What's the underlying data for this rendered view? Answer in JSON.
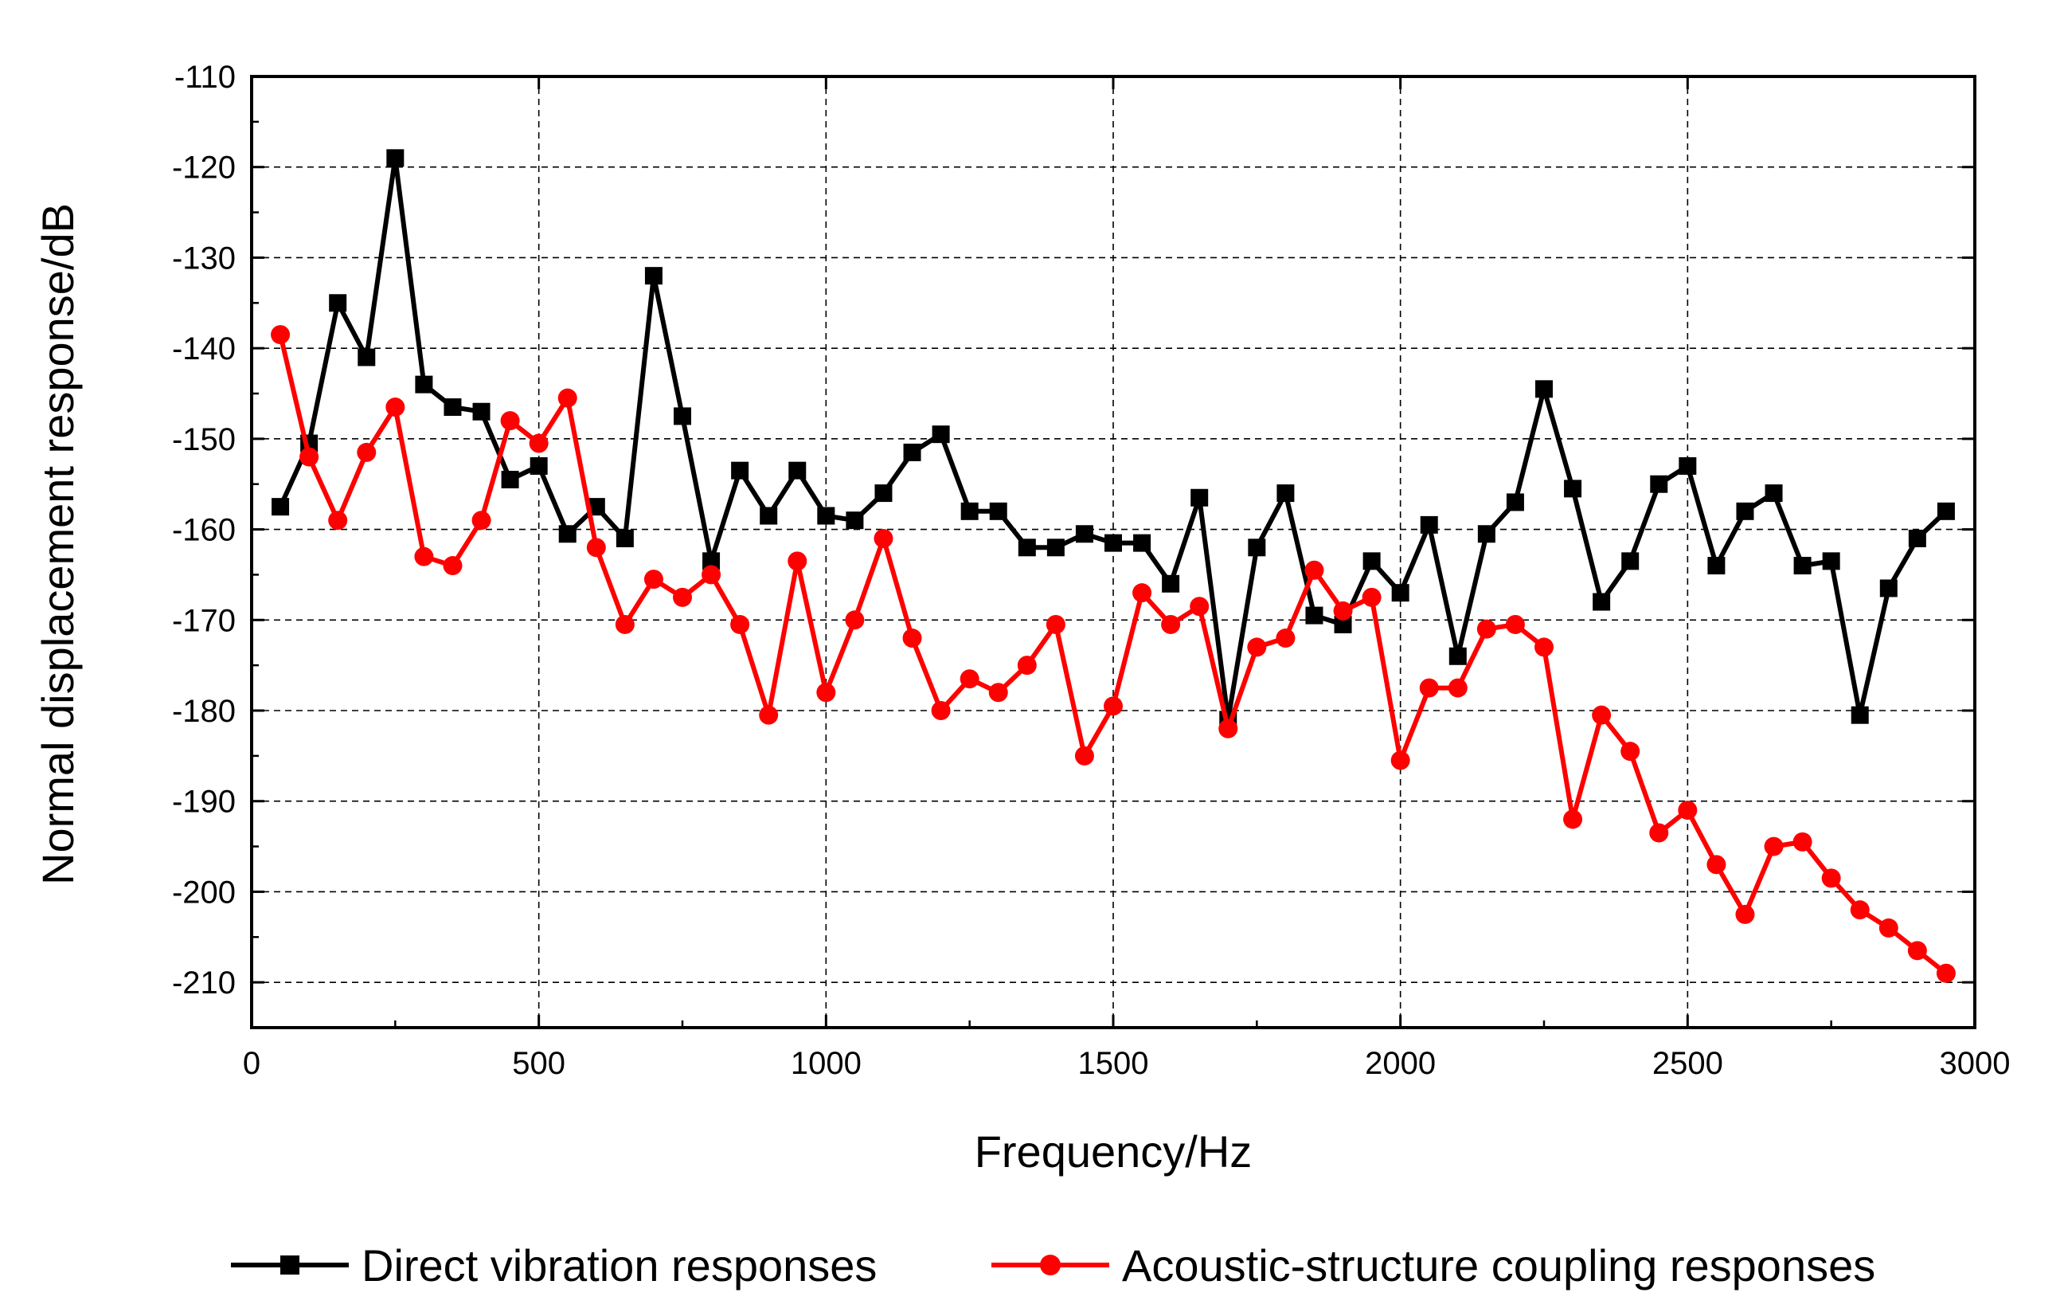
{
  "chart_data": {
    "type": "line",
    "title": "",
    "xlabel": "Frequency/Hz",
    "ylabel": "Normal displacement response/dB",
    "xlim": [
      0,
      3000
    ],
    "ylim": [
      -215,
      -110
    ],
    "xticks": [
      0,
      500,
      1000,
      1500,
      2000,
      2500,
      3000
    ],
    "yticks": [
      -110,
      -120,
      -130,
      -140,
      -150,
      -160,
      -170,
      -180,
      -190,
      -200,
      -210
    ],
    "grid": true,
    "legend_position": "bottom-center",
    "x": [
      50,
      100,
      150,
      200,
      250,
      300,
      350,
      400,
      450,
      500,
      550,
      600,
      650,
      700,
      750,
      800,
      850,
      900,
      950,
      1000,
      1050,
      1100,
      1150,
      1200,
      1250,
      1300,
      1350,
      1400,
      1450,
      1500,
      1550,
      1600,
      1650,
      1700,
      1750,
      1800,
      1850,
      1900,
      1950,
      2000,
      2050,
      2100,
      2150,
      2200,
      2250,
      2300,
      2350,
      2400,
      2450,
      2500,
      2550,
      2600,
      2650,
      2700,
      2750,
      2800,
      2850,
      2900,
      2950
    ],
    "series": [
      {
        "name": "Direct vibration responses",
        "color": "#000000",
        "marker": "square",
        "values": [
          -157.5,
          -150.5,
          -135,
          -141,
          -119,
          -144,
          -146.5,
          -147,
          -154.5,
          -153,
          -160.5,
          -157.5,
          -161,
          -132,
          -147.5,
          -163.5,
          -153.5,
          -158.5,
          -153.5,
          -158.5,
          -159,
          -156,
          -151.5,
          -149.5,
          -158,
          -158,
          -162,
          -162,
          -160.5,
          -161.5,
          -161.5,
          -166,
          -156.5,
          -181,
          -162,
          -156,
          -169.5,
          -170.5,
          -163.5,
          -167,
          -159.5,
          -174,
          -160.5,
          -157,
          -144.5,
          -155.5,
          -168,
          -163.5,
          -155,
          -153,
          -164,
          -158,
          -156,
          -164,
          -163.5,
          -180.5,
          -166.5,
          -161,
          -158
        ]
      },
      {
        "name": "Acoustic-structure coupling responses",
        "color": "#ff0000",
        "marker": "circle",
        "values": [
          -138.5,
          -152,
          -159,
          -151.5,
          -146.5,
          -163,
          -164,
          -159,
          -148,
          -150.5,
          -145.5,
          -162,
          -170.5,
          -165.5,
          -167.5,
          -165,
          -170.5,
          -180.5,
          -163.5,
          -178,
          -170,
          -161,
          -172,
          -180,
          -176.5,
          -178,
          -175,
          -170.5,
          -185,
          -179.5,
          -167,
          -170.5,
          -168.5,
          -182,
          -173,
          -172,
          -164.5,
          -169,
          -167.5,
          -185.5,
          -177.5,
          -177.5,
          -171,
          -170.5,
          -173,
          -192,
          -180.5,
          -184.5,
          -193.5,
          -191,
          -197,
          -202.5,
          -195,
          -194.5,
          -198.5,
          -202,
          -204,
          -206.5,
          -209
        ]
      }
    ]
  }
}
